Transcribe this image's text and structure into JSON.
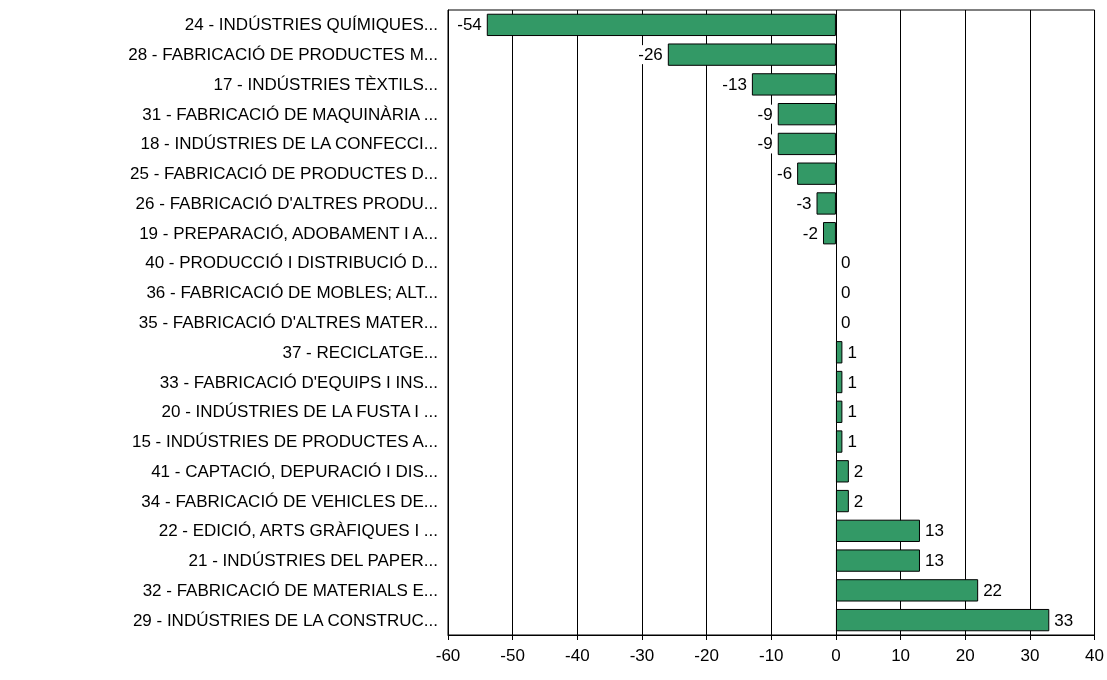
{
  "chart_data": {
    "type": "bar",
    "orientation": "horizontal",
    "categories": [
      "24 - INDÚSTRIES QUÍMIQUES...",
      "28 - FABRICACIÓ DE PRODUCTES M...",
      "17 - INDÚSTRIES TÈXTILS...",
      "31 - FABRICACIÓ DE MAQUINÀRIA ...",
      "18 - INDÚSTRIES DE LA CONFECCI...",
      "25 - FABRICACIÓ DE PRODUCTES D...",
      "26 - FABRICACIÓ D'ALTRES PRODU...",
      "19 - PREPARACIÓ, ADOBAMENT I A...",
      "40 - PRODUCCIÓ I DISTRIBUCIÓ D...",
      "36 - FABRICACIÓ DE MOBLES; ALT...",
      "35 - FABRICACIÓ D'ALTRES MATER...",
      "37 - RECICLATGE...",
      "33 - FABRICACIÓ D'EQUIPS I INS...",
      "20 - INDÚSTRIES DE LA FUSTA I ...",
      "15 - INDÚSTRIES DE PRODUCTES A...",
      "41 - CAPTACIÓ, DEPURACIÓ I DIS...",
      "34 - FABRICACIÓ DE VEHICLES DE...",
      "22 - EDICIÓ, ARTS GRÀFIQUES I ...",
      "21 - INDÚSTRIES DEL PAPER...",
      "32 - FABRICACIÓ DE MATERIALS E...",
      "29 - INDÚSTRIES DE LA CONSTRUC..."
    ],
    "values": [
      -54,
      -26,
      -13,
      -9,
      -9,
      -6,
      -3,
      -2,
      0,
      0,
      0,
      1,
      1,
      1,
      1,
      2,
      2,
      13,
      13,
      22,
      33
    ],
    "color": "#339966",
    "xlim": [
      -60,
      40
    ],
    "xticks": [
      -60,
      -50,
      -40,
      -30,
      -20,
      -10,
      0,
      10,
      20,
      30,
      40
    ],
    "grid": "x",
    "data_labels": true
  }
}
